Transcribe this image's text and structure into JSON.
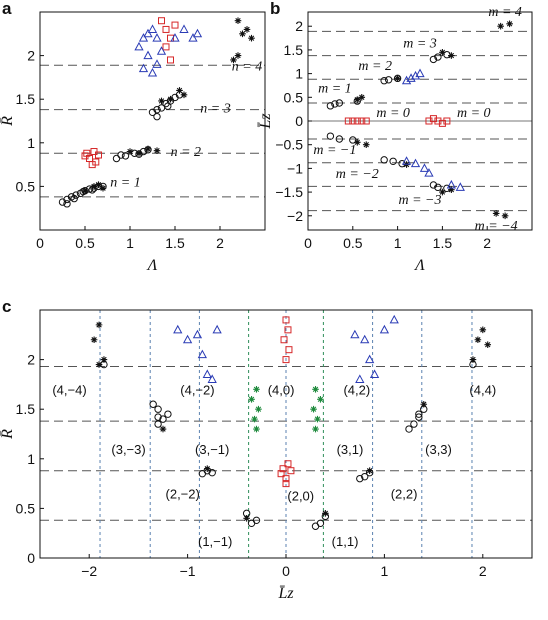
{
  "colors": {
    "black": "#111111",
    "red": "#d62728",
    "blue": "#2a3bb5",
    "green": "#1e8a3c",
    "hgrid": "#555555",
    "vgrid_blue": "#5b82b0",
    "vgrid_green": "#2f8f5a"
  },
  "chart_data": [
    {
      "panel": "a",
      "type": "scatter",
      "xlabel": "Λ",
      "ylabel": "R̄",
      "xlim": [
        0,
        2.5
      ],
      "ylim": [
        0,
        2.5
      ],
      "xticks": [
        "0",
        "0.5",
        "1",
        "1.5",
        "2"
      ],
      "yticks": [
        "0.5",
        "1",
        "1.5",
        "2"
      ],
      "hlines": [
        0.38,
        0.88,
        1.38,
        1.89
      ],
      "annotations": [
        "n = 1",
        "n = 2",
        "n = 3",
        "n = 4"
      ],
      "series": [
        {
          "marker": "circle-open",
          "color": "#111111",
          "points": [
            [
              0.25,
              0.32
            ],
            [
              0.3,
              0.35
            ],
            [
              0.35,
              0.38
            ],
            [
              0.4,
              0.4
            ],
            [
              0.45,
              0.42
            ],
            [
              0.5,
              0.45
            ],
            [
              0.55,
              0.47
            ],
            [
              0.6,
              0.48
            ],
            [
              0.65,
              0.5
            ],
            [
              0.3,
              0.3
            ],
            [
              0.38,
              0.36
            ],
            [
              0.48,
              0.44
            ],
            [
              0.58,
              0.46
            ],
            [
              0.7,
              0.5
            ],
            [
              0.85,
              0.82
            ],
            [
              0.95,
              0.85
            ],
            [
              1.05,
              0.88
            ],
            [
              1.15,
              0.9
            ],
            [
              1.2,
              0.92
            ],
            [
              0.9,
              0.86
            ],
            [
              1.1,
              0.87
            ],
            [
              1.25,
              1.35
            ],
            [
              1.3,
              1.38
            ],
            [
              1.35,
              1.4
            ],
            [
              1.4,
              1.45
            ],
            [
              1.45,
              1.48
            ],
            [
              1.5,
              1.52
            ],
            [
              1.55,
              1.55
            ],
            [
              1.3,
              1.3
            ],
            [
              1.42,
              1.42
            ]
          ]
        },
        {
          "marker": "star",
          "color": "#111111",
          "points": [
            [
              0.5,
              0.45
            ],
            [
              0.6,
              0.5
            ],
            [
              0.65,
              0.52
            ],
            [
              0.7,
              0.48
            ],
            [
              1.0,
              0.9
            ],
            [
              1.1,
              0.88
            ],
            [
              1.2,
              0.93
            ],
            [
              1.3,
              0.91
            ],
            [
              1.35,
              1.48
            ],
            [
              1.45,
              1.5
            ],
            [
              1.55,
              1.6
            ],
            [
              1.6,
              1.55
            ],
            [
              2.15,
              1.95
            ],
            [
              2.2,
              2.0
            ],
            [
              2.25,
              2.25
            ],
            [
              2.3,
              2.3
            ],
            [
              2.35,
              2.2
            ],
            [
              2.2,
              2.4
            ]
          ]
        },
        {
          "marker": "square-open",
          "color": "#d62728",
          "points": [
            [
              0.5,
              0.85
            ],
            [
              0.55,
              0.82
            ],
            [
              0.6,
              0.9
            ],
            [
              0.62,
              0.78
            ],
            [
              0.65,
              0.86
            ],
            [
              0.58,
              0.75
            ],
            [
              0.52,
              0.88
            ],
            [
              1.35,
              2.4
            ],
            [
              1.4,
              2.3
            ],
            [
              1.45,
              2.2
            ],
            [
              1.4,
              2.1
            ],
            [
              1.5,
              2.35
            ],
            [
              1.45,
              1.95
            ]
          ]
        },
        {
          "marker": "triangle-open",
          "color": "#2a3bb5",
          "points": [
            [
              1.1,
              2.1
            ],
            [
              1.15,
              2.2
            ],
            [
              1.2,
              2.25
            ],
            [
              1.25,
              2.3
            ],
            [
              1.3,
              2.2
            ],
            [
              1.2,
              2.0
            ],
            [
              1.15,
              1.85
            ],
            [
              1.25,
              1.8
            ],
            [
              1.3,
              1.9
            ],
            [
              1.35,
              2.05
            ],
            [
              1.6,
              2.3
            ],
            [
              1.7,
              2.2
            ],
            [
              1.75,
              2.25
            ],
            [
              1.5,
              2.2
            ]
          ]
        }
      ]
    },
    {
      "panel": "b",
      "type": "scatter",
      "xlabel": "Λ",
      "ylabel": "L̄z",
      "xlim": [
        0,
        2.5
      ],
      "ylim": [
        -2.3,
        2.3
      ],
      "xticks": [
        "0",
        "0.5",
        "1",
        "1.5",
        "2"
      ],
      "yticks": [
        "−2",
        "−1.5",
        "−1",
        "−0.5",
        "0",
        "0.5",
        "1",
        "1.5",
        "2"
      ],
      "hlines": [
        -1.89,
        -1.38,
        -0.88,
        -0.38,
        0,
        0.38,
        0.88,
        1.38,
        1.89
      ],
      "annotations": [
        "m = 3",
        "m = 2",
        "m = 1",
        "m = 0",
        "m = 0",
        "m = −1",
        "m = −2",
        "m = −3",
        "m = −4",
        "m = 4"
      ],
      "series": [
        {
          "marker": "circle-open",
          "color": "#111111",
          "points": [
            [
              0.25,
              0.32
            ],
            [
              0.3,
              0.36
            ],
            [
              0.35,
              0.38
            ],
            [
              0.25,
              -0.32
            ],
            [
              0.35,
              -0.38
            ],
            [
              0.85,
              0.85
            ],
            [
              0.9,
              0.87
            ],
            [
              1.0,
              0.9
            ],
            [
              0.85,
              -0.82
            ],
            [
              0.95,
              -0.85
            ],
            [
              1.05,
              -0.9
            ],
            [
              1.4,
              1.3
            ],
            [
              1.45,
              1.35
            ],
            [
              1.55,
              1.4
            ],
            [
              1.4,
              -1.35
            ],
            [
              1.45,
              -1.4
            ],
            [
              1.55,
              -1.42
            ],
            [
              0.5,
              -0.4
            ],
            [
              0.55,
              0.42
            ]
          ]
        },
        {
          "marker": "star",
          "color": "#111111",
          "points": [
            [
              0.55,
              0.45
            ],
            [
              0.6,
              0.5
            ],
            [
              0.55,
              -0.45
            ],
            [
              0.65,
              -0.5
            ],
            [
              1.0,
              0.9
            ],
            [
              1.1,
              -0.92
            ],
            [
              1.5,
              1.45
            ],
            [
              1.6,
              1.38
            ],
            [
              1.5,
              -1.5
            ],
            [
              1.6,
              -1.45
            ],
            [
              2.15,
              2.0
            ],
            [
              2.25,
              2.05
            ],
            [
              2.1,
              -1.95
            ],
            [
              2.2,
              -2.0
            ]
          ]
        },
        {
          "marker": "square-open",
          "color": "#d62728",
          "points": [
            [
              0.45,
              0
            ],
            [
              0.5,
              0
            ],
            [
              0.55,
              0
            ],
            [
              0.6,
              0
            ],
            [
              0.65,
              0
            ],
            [
              1.35,
              0
            ],
            [
              1.4,
              0.05
            ],
            [
              1.45,
              0
            ],
            [
              1.5,
              -0.05
            ],
            [
              1.55,
              0
            ]
          ]
        },
        {
          "marker": "triangle-open",
          "color": "#2a3bb5",
          "points": [
            [
              1.1,
              0.85
            ],
            [
              1.15,
              0.9
            ],
            [
              1.2,
              0.95
            ],
            [
              1.25,
              1.0
            ],
            [
              1.1,
              -0.85
            ],
            [
              1.2,
              -0.9
            ],
            [
              1.3,
              -1.0
            ],
            [
              1.35,
              -1.1
            ],
            [
              1.6,
              -1.35
            ],
            [
              1.7,
              -1.4
            ]
          ]
        }
      ]
    },
    {
      "panel": "c",
      "type": "scatter",
      "xlabel": "L̄z",
      "ylabel": "R̄",
      "xlim": [
        -2.5,
        2.5
      ],
      "ylim": [
        0,
        2.5
      ],
      "xticks": [
        "−2",
        "−1",
        "0",
        "1",
        "2"
      ],
      "yticks": [
        "0",
        "0.5",
        "1",
        "1.5",
        "2"
      ],
      "hlines": [
        0.38,
        0.88,
        1.38,
        1.93
      ],
      "vlines": [
        -1.89,
        -1.38,
        -0.88,
        -0.38,
        0,
        0.38,
        0.88,
        1.38,
        1.89
      ],
      "green_vlines": [
        -0.38,
        0.38
      ],
      "annotations": [
        "(4,−4)",
        "(4,−2)",
        "(4,0)",
        "(4,2)",
        "(4,4)",
        "(3,−3)",
        "(3,−1)",
        "(3,1)",
        "(3,3)",
        "(2,−2)",
        "(2,0)",
        "(2,2)",
        "(1,−1)",
        "(1,1)"
      ],
      "series": [
        {
          "marker": "circle-open",
          "color": "#111111",
          "points": [
            [
              -1.3,
              1.35
            ],
            [
              -1.25,
              1.4
            ],
            [
              -1.3,
              1.5
            ],
            [
              -1.2,
              1.45
            ],
            [
              -1.35,
              1.55
            ],
            [
              1.3,
              1.35
            ],
            [
              1.35,
              1.45
            ],
            [
              1.25,
              1.3
            ],
            [
              1.4,
              1.5
            ],
            [
              -0.85,
              0.85
            ],
            [
              -0.8,
              0.88
            ],
            [
              -0.75,
              0.86
            ],
            [
              0.8,
              0.82
            ],
            [
              0.85,
              0.86
            ],
            [
              0.75,
              0.8
            ],
            [
              -0.35,
              0.35
            ],
            [
              -0.3,
              0.38
            ],
            [
              -0.4,
              0.45
            ],
            [
              0.35,
              0.35
            ],
            [
              0.4,
              0.42
            ],
            [
              0.3,
              0.32
            ],
            [
              1.9,
              1.95
            ],
            [
              -1.85,
              1.95
            ],
            [
              -1.3,
              1.42
            ],
            [
              1.35,
              1.42
            ]
          ]
        },
        {
          "marker": "star",
          "color": "#111111",
          "points": [
            [
              -1.9,
              1.95
            ],
            [
              -1.85,
              2.0
            ],
            [
              -1.95,
              2.2
            ],
            [
              -1.9,
              2.35
            ],
            [
              1.9,
              2.0
            ],
            [
              1.95,
              2.2
            ],
            [
              2.0,
              2.3
            ],
            [
              2.05,
              2.15
            ],
            [
              -1.25,
              1.3
            ],
            [
              1.4,
              1.55
            ],
            [
              -0.8,
              0.9
            ],
            [
              0.85,
              0.88
            ],
            [
              -0.4,
              0.4
            ],
            [
              0.4,
              0.45
            ]
          ]
        },
        {
          "marker": "square-open",
          "color": "#d62728",
          "points": [
            [
              0,
              2.4
            ],
            [
              0.02,
              2.3
            ],
            [
              -0.02,
              2.2
            ],
            [
              0.03,
              2.1
            ],
            [
              0,
              2.0
            ],
            [
              -0.05,
              0.85
            ],
            [
              0,
              0.8
            ],
            [
              0.05,
              0.88
            ],
            [
              0,
              0.75
            ],
            [
              -0.03,
              0.9
            ],
            [
              0.02,
              0.95
            ]
          ]
        },
        {
          "marker": "triangle-open",
          "color": "#2a3bb5",
          "points": [
            [
              -1.1,
              2.3
            ],
            [
              -1.0,
              2.2
            ],
            [
              -0.9,
              2.25
            ],
            [
              -0.85,
              2.05
            ],
            [
              -0.8,
              1.85
            ],
            [
              -0.75,
              1.8
            ],
            [
              -0.7,
              2.3
            ],
            [
              0.7,
              2.25
            ],
            [
              0.8,
              2.2
            ],
            [
              0.85,
              2.0
            ],
            [
              0.9,
              1.85
            ],
            [
              1.0,
              2.3
            ],
            [
              1.1,
              2.4
            ],
            [
              0.75,
              1.8
            ]
          ]
        },
        {
          "marker": "star",
          "color": "#1e8a3c",
          "points": [
            [
              -0.3,
              1.3
            ],
            [
              -0.32,
              1.4
            ],
            [
              -0.28,
              1.5
            ],
            [
              -0.35,
              1.6
            ],
            [
              -0.3,
              1.7
            ],
            [
              0.3,
              1.3
            ],
            [
              0.32,
              1.4
            ],
            [
              0.28,
              1.5
            ],
            [
              0.35,
              1.6
            ],
            [
              0.3,
              1.7
            ]
          ]
        }
      ]
    }
  ]
}
